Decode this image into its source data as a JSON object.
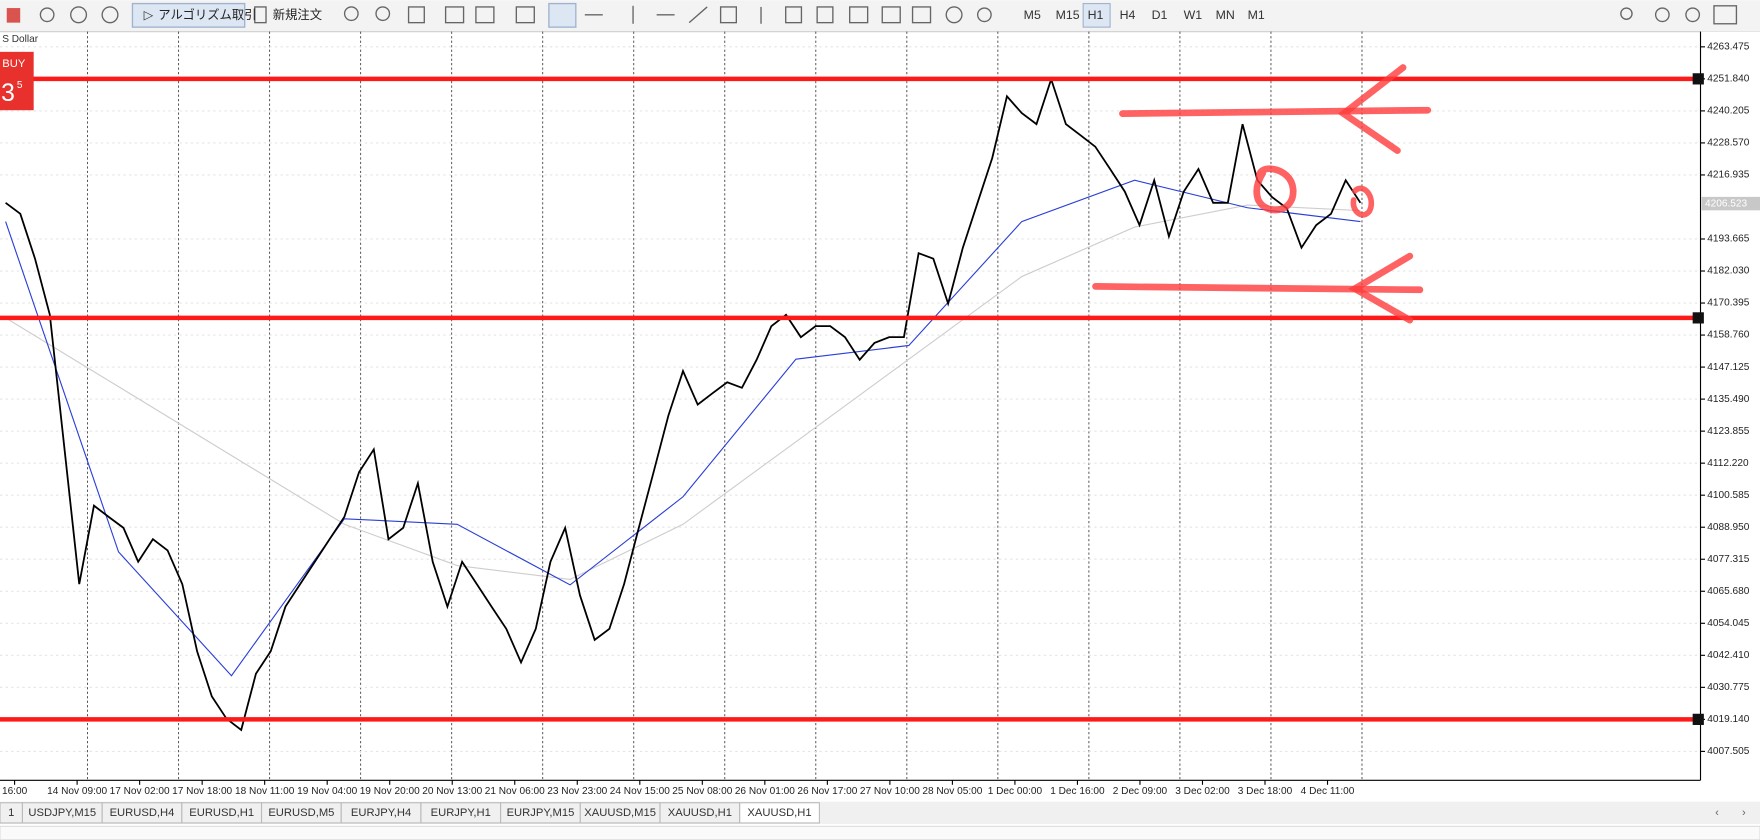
{
  "toolbar": {
    "algo_button": "アルゴリズム取引",
    "new_order": "新規注文",
    "timeframes": [
      {
        "label": "M5"
      },
      {
        "label": "M15"
      },
      {
        "label": "H1",
        "active": true
      },
      {
        "label": "H4"
      },
      {
        "label": "D1"
      },
      {
        "label": "W1"
      },
      {
        "label": "MN"
      },
      {
        "label": "M1"
      }
    ]
  },
  "trade_panel": {
    "symbol_note": "S Dollar",
    "side": "BUY",
    "price_big": "3",
    "price_small": "5"
  },
  "chart_data": {
    "type": "line",
    "ylim": [
      3997,
      4269
    ],
    "yticks": [
      4263.475,
      {
        "value": 4251.84,
        "label": "4251.840"
      },
      4240.205,
      {
        "value": 4228.57,
        "label": "4228.570"
      },
      4216.935,
      4193.665,
      {
        "value": 4182.03,
        "label": "4182.030"
      },
      4170.395,
      {
        "value": 4158.76,
        "label": "4158.760"
      },
      4147.125,
      {
        "value": 4135.49,
        "label": "4135.490"
      },
      4123.855,
      {
        "value": 4112.22,
        "label": "4112.220"
      },
      4100.585,
      {
        "value": 4088.95,
        "label": "4088.950"
      },
      4077.315,
      {
        "value": 4065.68,
        "label": "4065.680"
      },
      4054.045,
      {
        "value": 4042.41,
        "label": "4042.410"
      },
      4030.775,
      {
        "value": 4019.14,
        "label": "4019.140"
      },
      4007.505
    ],
    "current_price": 4206.523,
    "x_labels": [
      "16:00",
      "14 Nov 09:00",
      "17 Nov 02:00",
      "17 Nov 18:00",
      "18 Nov 11:00",
      "19 Nov 04:00",
      "19 Nov 20:00",
      "20 Nov 13:00",
      "21 Nov 06:00",
      "23 Nov 23:00",
      "24 Nov 15:00",
      "25 Nov 08:00",
      "26 Nov 01:00",
      "26 Nov 17:00",
      "27 Nov 10:00",
      "28 Nov 05:00",
      "1 Dec 00:00",
      "1 Dec 16:00",
      "2 Dec 09:00",
      "3 Dec 02:00",
      "3 Dec 18:00",
      "4 Dec 11:00"
    ],
    "levels": [
      4251.84,
      4165,
      4019.14
    ],
    "level_color": "#ff1a1a",
    "series": [
      {
        "color": "#000000",
        "values": [
          4206.8,
          4202.8,
          4186.5,
          4166.1,
          4117.2,
          4068.3,
          4096.8,
          4092.7,
          4088.7,
          4076.4,
          4084.6,
          4080.5,
          4068.3,
          4043.9,
          4027.5,
          4019.4,
          4015.3,
          4035.7,
          4043.9,
          4060.1,
          4068.3,
          4076.4,
          4084.6,
          4092.7,
          4109.0,
          4117.2,
          4084.6,
          4088.7,
          4104.9,
          4076.4,
          4060.1,
          4076.4,
          4068.3,
          4060.1,
          4052.0,
          4039.8,
          4052.0,
          4076.4,
          4088.7,
          4064.2,
          4048.0,
          4052.0,
          4068.3,
          4088.7,
          4109.0,
          4129.4,
          4145.7,
          4133.5,
          4137.6,
          4141.6,
          4139.6,
          4149.8,
          4162.0,
          4166.1,
          4158.0,
          4162.0,
          4162.0,
          4158.0,
          4149.8,
          4155.9,
          4158.0,
          4158.0,
          4188.5,
          4186.5,
          4170.2,
          4190.5,
          4206.8,
          4223.1,
          4245.5,
          4239.4,
          4235.4,
          4251.7,
          4235.4,
          4231.3,
          4227.2,
          4219.1,
          4210.9,
          4198.7,
          4215.0,
          4194.6,
          4210.9,
          4219.1,
          4206.8,
          4206.8,
          4235.4,
          4215.0,
          4208.9,
          4204.8,
          4190.5,
          4198.7,
          4202.8,
          4215.0,
          4206.8
        ]
      },
      {
        "color": "#2a3fd6",
        "values": [
          4200,
          4080,
          4035,
          4092,
          4090,
          4068,
          4100,
          4150,
          4155,
          4200,
          4215,
          4205,
          4200
        ]
      },
      {
        "color": "#d0cccc",
        "values": [
          4165,
          4140,
          4115,
          4090,
          4075,
          4070,
          4090,
          4120,
          4150,
          4180,
          4198,
          4206,
          4204
        ]
      }
    ]
  },
  "tabs": [
    {
      "label": "1"
    },
    {
      "label": "USDJPY,M15"
    },
    {
      "label": "EURUSD,H4"
    },
    {
      "label": "EURUSD,H1"
    },
    {
      "label": "EURUSD,M5"
    },
    {
      "label": "EURJPY,H4"
    },
    {
      "label": "EURJPY,H1"
    },
    {
      "label": "EURJPY,M15"
    },
    {
      "label": "XAUUSD,M15"
    },
    {
      "label": "XAUUSD,H1"
    },
    {
      "label": "XAUUSD,H1",
      "active": true
    }
  ]
}
